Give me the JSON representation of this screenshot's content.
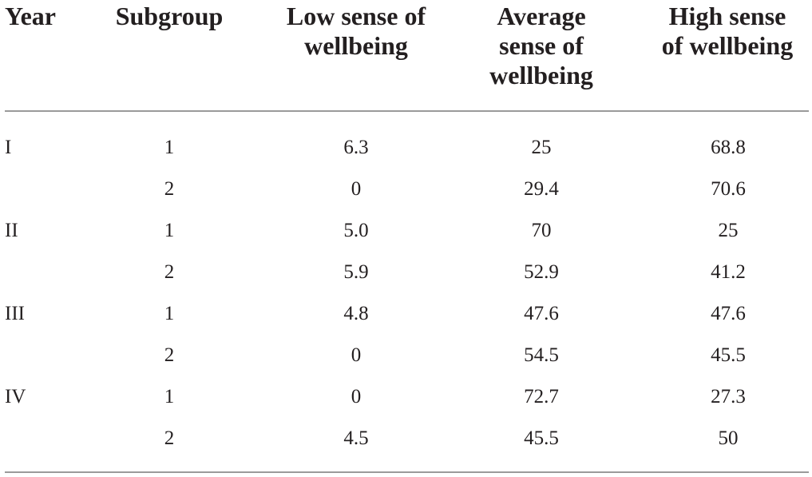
{
  "table": {
    "headers": {
      "year": [
        "Year"
      ],
      "subgroup": [
        "Subgroup"
      ],
      "low": [
        "Low sense of",
        "wellbeing"
      ],
      "average": [
        "Average",
        "sense of",
        "wellbeing"
      ],
      "high": [
        "High sense",
        "of wellbeing"
      ]
    },
    "rows": [
      {
        "year": "I",
        "subgroup": "1",
        "low": "6.3",
        "average": "25",
        "high": "68.8"
      },
      {
        "year": "",
        "subgroup": "2",
        "low": "0",
        "average": "29.4",
        "high": "70.6"
      },
      {
        "year": "II",
        "subgroup": "1",
        "low": "5.0",
        "average": "70",
        "high": "25"
      },
      {
        "year": "",
        "subgroup": "2",
        "low": "5.9",
        "average": "52.9",
        "high": "41.2"
      },
      {
        "year": "III",
        "subgroup": "1",
        "low": "4.8",
        "average": "47.6",
        "high": "47.6"
      },
      {
        "year": "",
        "subgroup": "2",
        "low": "0",
        "average": "54.5",
        "high": "45.5"
      },
      {
        "year": "IV",
        "subgroup": "1",
        "low": "0",
        "average": "72.7",
        "high": "27.3"
      },
      {
        "year": "",
        "subgroup": "2",
        "low": "4.5",
        "average": "45.5",
        "high": "50"
      }
    ]
  }
}
